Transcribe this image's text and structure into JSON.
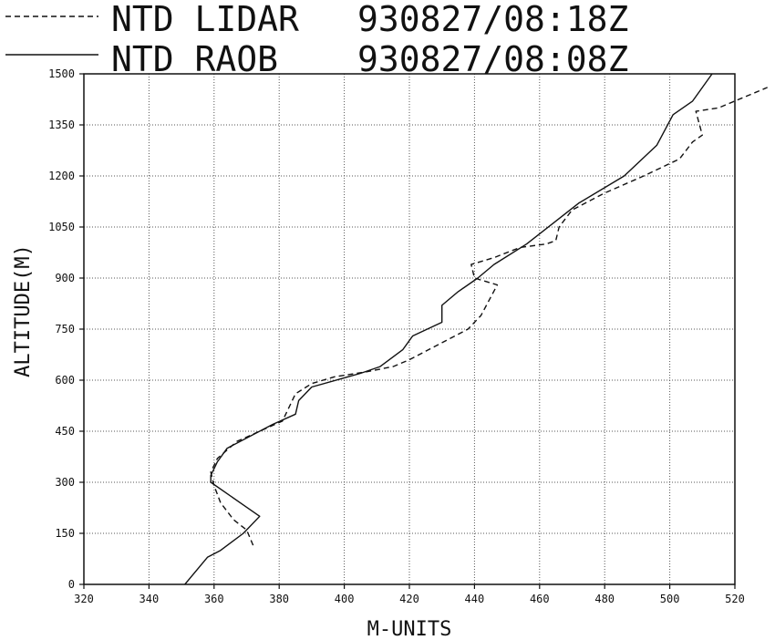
{
  "chart_data": {
    "type": "line",
    "legend_placement": "top",
    "xlabel": "M-UNITS",
    "ylabel": "ALTITUDE(M)",
    "xlim": [
      320,
      520
    ],
    "ylim": [
      0,
      1500
    ],
    "x_ticks": [
      "320",
      "340",
      "360",
      "380",
      "400",
      "420",
      "440",
      "460",
      "480",
      "500",
      "520"
    ],
    "y_ticks": [
      "0",
      "150",
      "300",
      "450",
      "600",
      "750",
      "900",
      "1050",
      "1200",
      "1350",
      "1500"
    ],
    "grid": true,
    "series": [
      {
        "name": "NTD LIDAR",
        "timestamp": "930827/08:18Z",
        "style": "dashed",
        "points": [
          [
            372,
            115
          ],
          [
            370,
            160
          ],
          [
            366,
            190
          ],
          [
            362,
            240
          ],
          [
            360,
            290
          ],
          [
            359,
            330
          ],
          [
            361,
            370
          ],
          [
            367,
            420
          ],
          [
            374,
            450
          ],
          [
            381,
            480
          ],
          [
            385,
            560
          ],
          [
            390,
            590
          ],
          [
            397,
            610
          ],
          [
            407,
            625
          ],
          [
            415,
            640
          ],
          [
            420,
            660
          ],
          [
            426,
            690
          ],
          [
            432,
            720
          ],
          [
            438,
            750
          ],
          [
            442,
            790
          ],
          [
            447,
            880
          ],
          [
            440,
            900
          ],
          [
            439,
            940
          ],
          [
            446,
            960
          ],
          [
            454,
            990
          ],
          [
            462,
            1000
          ],
          [
            465,
            1010
          ],
          [
            466,
            1050
          ],
          [
            470,
            1100
          ],
          [
            480,
            1150
          ],
          [
            492,
            1200
          ],
          [
            503,
            1250
          ],
          [
            507,
            1300
          ],
          [
            510,
            1320
          ],
          [
            508,
            1390
          ],
          [
            515,
            1400
          ],
          [
            530,
            1460
          ]
        ]
      },
      {
        "name": "NTD RAOB",
        "timestamp": "930827/08:08Z",
        "style": "solid",
        "points": [
          [
            351,
            0
          ],
          [
            358,
            80
          ],
          [
            362,
            100
          ],
          [
            369,
            150
          ],
          [
            374,
            200
          ],
          [
            368,
            240
          ],
          [
            359,
            300
          ],
          [
            359,
            320
          ],
          [
            361,
            360
          ],
          [
            364,
            400
          ],
          [
            372,
            440
          ],
          [
            378,
            470
          ],
          [
            385,
            500
          ],
          [
            386,
            540
          ],
          [
            390,
            580
          ],
          [
            405,
            620
          ],
          [
            411,
            640
          ],
          [
            418,
            690
          ],
          [
            421,
            730
          ],
          [
            430,
            770
          ],
          [
            430,
            820
          ],
          [
            435,
            860
          ],
          [
            441,
            900
          ],
          [
            446,
            940
          ],
          [
            456,
            1000
          ],
          [
            464,
            1060
          ],
          [
            472,
            1120
          ],
          [
            486,
            1200
          ],
          [
            496,
            1290
          ],
          [
            501,
            1380
          ],
          [
            507,
            1420
          ],
          [
            513,
            1500
          ]
        ]
      }
    ]
  },
  "legend": {
    "items": [
      {
        "label": "NTD LIDAR",
        "time": "930827/08:18Z",
        "style": "dashed"
      },
      {
        "label": "NTD RAOB",
        "time": "930827/08:08Z",
        "style": "solid"
      }
    ]
  }
}
